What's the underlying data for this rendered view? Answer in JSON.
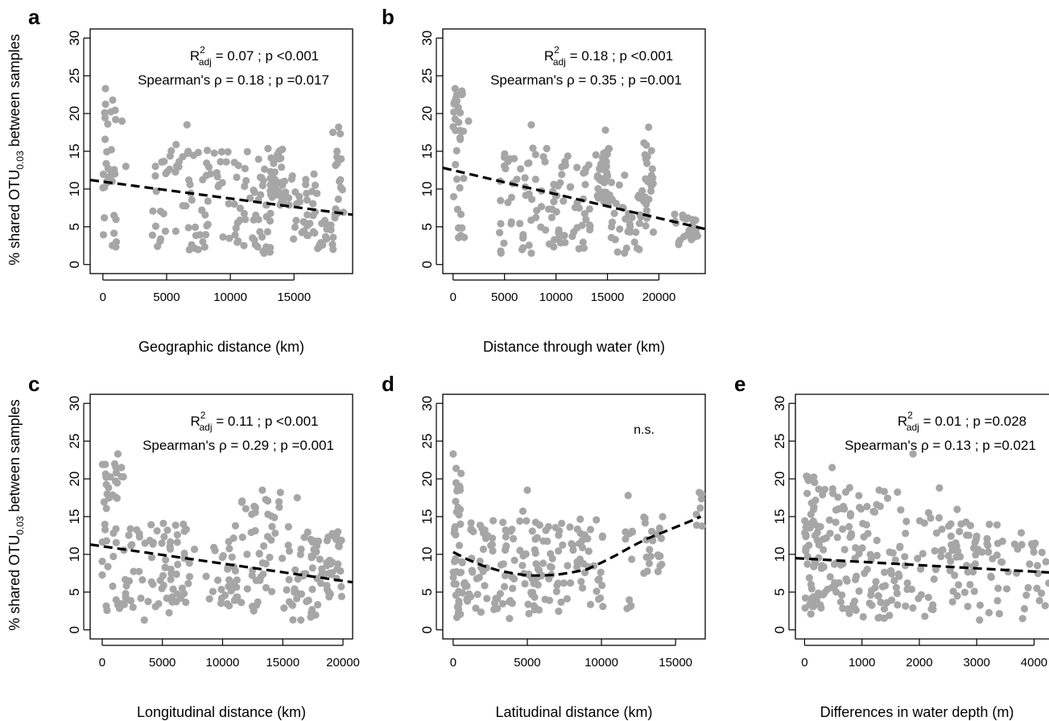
{
  "figure": {
    "ylabel_prefix": "% shared OTU",
    "ylabel_sub": "0.03",
    "ylabel_suffix": " between samples",
    "stat_r2_label": "R",
    "stat_r2_sup": "2",
    "stat_r2_sub": "adj",
    "spearman_label": "Spearman's ρ = "
  },
  "colors": {
    "points": "#A6A6A6",
    "trend": "#000000",
    "axis": "#000000"
  },
  "chart_data": [
    {
      "type": "scatter",
      "panel_label": "a",
      "xlabel": "Geographic distance (km)",
      "ylabel": "% shared OTU0.03 between samples",
      "xlim": [
        -1000,
        19600
      ],
      "ylim": [
        -1.2,
        31.2
      ],
      "x_ticks": [
        0,
        5000,
        10000,
        15000
      ],
      "y_ticks": [
        0,
        5,
        10,
        15,
        20,
        25,
        30
      ],
      "stats": {
        "r2": "0.07",
        "r2_p": "<0.001",
        "rho": "0.18",
        "rho_p": "=0.017"
      },
      "trend": {
        "style": "dashed",
        "points": [
          [
            -1000,
            11.2
          ],
          [
            19600,
            6.6
          ]
        ]
      },
      "clusters": [
        {
          "xr": [
            0,
            1100
          ],
          "yr": [
            10,
            23
          ],
          "n": 25
        },
        {
          "xr": [
            0,
            1100
          ],
          "yr": [
            2,
            10
          ],
          "n": 8
        },
        {
          "xr": [
            3800,
            8200
          ],
          "yr": [
            1.5,
            16
          ],
          "n": 55
        },
        {
          "xr": [
            8200,
            11500
          ],
          "yr": [
            2,
            15
          ],
          "n": 35
        },
        {
          "xr": [
            11500,
            13200
          ],
          "yr": [
            1.2,
            10
          ],
          "n": 25
        },
        {
          "xr": [
            12200,
            14200
          ],
          "yr": [
            7.5,
            15.5
          ],
          "n": 45
        },
        {
          "xr": [
            14200,
            16800
          ],
          "yr": [
            3,
            12
          ],
          "n": 35
        },
        {
          "xr": [
            16500,
            18200
          ],
          "yr": [
            2,
            6
          ],
          "n": 18
        },
        {
          "xr": [
            18000,
            18900
          ],
          "yr": [
            5,
            18
          ],
          "n": 18
        }
      ],
      "points": [
        [
          1000,
          19.2
        ],
        [
          1500,
          19
        ],
        [
          1800,
          13
        ],
        [
          200,
          23.3
        ],
        [
          18500,
          18.2
        ],
        [
          6600,
          18.5
        ]
      ]
    },
    {
      "type": "scatter",
      "panel_label": "b",
      "xlabel": "Distance through water (km)",
      "ylabel": "",
      "xlim": [
        -1000,
        24500
      ],
      "ylim": [
        -1.2,
        31.2
      ],
      "x_ticks": [
        0,
        5000,
        10000,
        15000,
        20000
      ],
      "y_ticks": [
        0,
        5,
        10,
        15,
        20,
        25,
        30
      ],
      "stats": {
        "r2": "0.18",
        "r2_p": "<0.001",
        "rho": "0.35",
        "rho_p": "=0.001"
      },
      "trend": {
        "style": "dashed",
        "points": [
          [
            -1000,
            12.8
          ],
          [
            24500,
            4.7
          ]
        ]
      },
      "clusters": [
        {
          "xr": [
            0,
            1100
          ],
          "yr": [
            10,
            23
          ],
          "n": 25
        },
        {
          "xr": [
            0,
            1100
          ],
          "yr": [
            2,
            10
          ],
          "n": 8
        },
        {
          "xr": [
            4500,
            9500
          ],
          "yr": [
            1.5,
            15.5
          ],
          "n": 50
        },
        {
          "xr": [
            9500,
            13500
          ],
          "yr": [
            2,
            14.5
          ],
          "n": 50
        },
        {
          "xr": [
            13800,
            15200
          ],
          "yr": [
            8,
            15.5
          ],
          "n": 40
        },
        {
          "xr": [
            15000,
            19500
          ],
          "yr": [
            1.5,
            12
          ],
          "n": 50
        },
        {
          "xr": [
            18500,
            19500
          ],
          "yr": [
            8,
            18
          ],
          "n": 12
        },
        {
          "xr": [
            21500,
            23800
          ],
          "yr": [
            2.5,
            6.8
          ],
          "n": 25
        }
      ],
      "points": [
        [
          200,
          23.3
        ],
        [
          1500,
          19
        ],
        [
          7600,
          18.5
        ],
        [
          19000,
          18.2
        ],
        [
          14800,
          17.8
        ],
        [
          7600,
          1.5
        ]
      ]
    },
    {
      "type": "scatter",
      "panel_label": "c",
      "xlabel": "Longitudinal distance (km)",
      "ylabel": "% shared OTU0.03 between samples",
      "xlim": [
        -1000,
        20800
      ],
      "ylim": [
        -1.2,
        31.2
      ],
      "x_ticks": [
        0,
        5000,
        10000,
        15000,
        20000
      ],
      "y_ticks": [
        0,
        5,
        10,
        15,
        20,
        25,
        30
      ],
      "stats": {
        "r2": "0.11",
        "r2_p": "<0.001",
        "rho": "0.29",
        "rho_p": "=0.001"
      },
      "trend": {
        "style": "dashed",
        "points": [
          [
            -1000,
            11.3
          ],
          [
            20800,
            6.3
          ]
        ]
      },
      "clusters": [
        {
          "xr": [
            0,
            1800
          ],
          "yr": [
            11,
            22
          ],
          "n": 28
        },
        {
          "xr": [
            0,
            2000
          ],
          "yr": [
            2,
            11
          ],
          "n": 18
        },
        {
          "xr": [
            2000,
            7500
          ],
          "yr": [
            1.5,
            14.5
          ],
          "n": 70
        },
        {
          "xr": [
            7500,
            11000
          ],
          "yr": [
            2,
            12.5
          ],
          "n": 28
        },
        {
          "xr": [
            11000,
            15500
          ],
          "yr": [
            2,
            17.5
          ],
          "n": 55
        },
        {
          "xr": [
            15500,
            18000
          ],
          "yr": [
            1.3,
            13.5
          ],
          "n": 40
        },
        {
          "xr": [
            18000,
            20000
          ],
          "yr": [
            4,
            13
          ],
          "n": 35
        }
      ],
      "points": [
        [
          1300,
          23.3
        ],
        [
          1600,
          21.5
        ],
        [
          13300,
          18.5
        ],
        [
          14800,
          18.2
        ],
        [
          16200,
          17.5
        ],
        [
          3500,
          1.3
        ],
        [
          16500,
          1.3
        ]
      ]
    },
    {
      "type": "scatter",
      "panel_label": "d",
      "xlabel": "Latitudinal distance (km)",
      "ylabel": "",
      "xlim": [
        -700,
        17000
      ],
      "ylim": [
        -1.2,
        31.2
      ],
      "x_ticks": [
        0,
        5000,
        10000,
        15000
      ],
      "y_ticks": [
        0,
        5,
        10,
        15,
        20,
        25,
        30
      ],
      "stats": {
        "ns": "n.s."
      },
      "trend": {
        "style": "dashed",
        "points": [
          [
            0,
            10.3
          ],
          [
            1000,
            9.3
          ],
          [
            2000,
            8.5
          ],
          [
            3000,
            7.9
          ],
          [
            4000,
            7.5
          ],
          [
            5000,
            7.2
          ],
          [
            6000,
            7.2
          ],
          [
            7000,
            7.3
          ],
          [
            8000,
            7.6
          ],
          [
            9000,
            8.0
          ],
          [
            10000,
            8.9
          ],
          [
            11000,
            9.9
          ],
          [
            12000,
            11.0
          ],
          [
            13000,
            12.0
          ],
          [
            14000,
            12.8
          ],
          [
            15000,
            13.6
          ],
          [
            16000,
            14.4
          ],
          [
            16700,
            15.0
          ]
        ]
      },
      "clusters": [
        {
          "xr": [
            0,
            600
          ],
          "yr": [
            9,
            22
          ],
          "n": 22
        },
        {
          "xr": [
            0,
            1000
          ],
          "yr": [
            1.5,
            9
          ],
          "n": 25
        },
        {
          "xr": [
            1000,
            4500
          ],
          "yr": [
            2,
            14.5
          ],
          "n": 60
        },
        {
          "xr": [
            4500,
            6500
          ],
          "yr": [
            2,
            16
          ],
          "n": 45
        },
        {
          "xr": [
            6500,
            10200
          ],
          "yr": [
            2,
            15
          ],
          "n": 55
        },
        {
          "xr": [
            11600,
            12000
          ],
          "yr": [
            2.5,
            4
          ],
          "n": 4
        },
        {
          "xr": [
            11600,
            12200
          ],
          "yr": [
            9,
            13.5
          ],
          "n": 6
        },
        {
          "xr": [
            12800,
            14200
          ],
          "yr": [
            7,
            15
          ],
          "n": 22
        },
        {
          "xr": [
            16400,
            16800
          ],
          "yr": [
            12.5,
            18
          ],
          "n": 6
        }
      ],
      "points": [
        [
          0,
          23.3
        ],
        [
          11800,
          17.8
        ],
        [
          5000,
          18.5
        ],
        [
          3800,
          1.5
        ],
        [
          16600,
          18.2
        ]
      ]
    },
    {
      "type": "scatter",
      "panel_label": "e",
      "xlabel": "Differences in water depth (m)",
      "ylabel": "",
      "xlim": [
        -160,
        4260
      ],
      "ylim": [
        -1.2,
        31.2
      ],
      "x_ticks": [
        0,
        1000,
        2000,
        3000,
        4000
      ],
      "y_ticks": [
        0,
        5,
        10,
        15,
        20,
        25,
        30
      ],
      "stats": {
        "r2": "0.01",
        "r2_p": "=0.028",
        "rho": "0.13",
        "rho_p": "=0.021"
      },
      "trend": {
        "style": "dashed",
        "points": [
          [
            -160,
            9.5
          ],
          [
            4260,
            7.6
          ]
        ]
      },
      "clusters": [
        {
          "xr": [
            0,
            200
          ],
          "yr": [
            2,
            21
          ],
          "n": 45
        },
        {
          "xr": [
            200,
            1000
          ],
          "yr": [
            2,
            19
          ],
          "n": 75
        },
        {
          "xr": [
            1000,
            2000
          ],
          "yr": [
            1.5,
            18.5
          ],
          "n": 65
        },
        {
          "xr": [
            2000,
            3000
          ],
          "yr": [
            1.5,
            16
          ],
          "n": 60
        },
        {
          "xr": [
            3000,
            4260
          ],
          "yr": [
            2,
            14
          ],
          "n": 45
        }
      ],
      "points": [
        [
          480,
          21.5
        ],
        [
          1890,
          23.3
        ],
        [
          2350,
          18.8
        ],
        [
          1300,
          18.5
        ],
        [
          3800,
          1.5
        ],
        [
          3050,
          1.3
        ]
      ]
    }
  ]
}
